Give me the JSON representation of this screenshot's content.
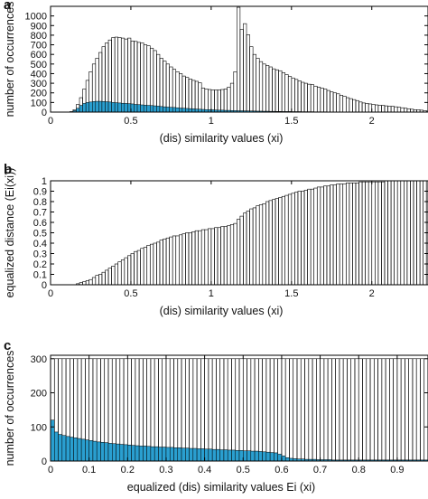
{
  "colors": {
    "fill": "#2a9fd0",
    "stroke": "#000000",
    "background": "#ffffff"
  },
  "chart_data": [
    {
      "panel": "a",
      "type": "bar",
      "xlabel": "(dis) similarity values (xi)",
      "ylabel": "number of occurrences",
      "xlim": [
        0,
        2.35
      ],
      "ylim": [
        0,
        1100
      ],
      "xticks": [
        "0",
        "0.5",
        "1",
        "1.5",
        "2"
      ],
      "yticks": [
        "0",
        "100",
        "200",
        "300",
        "400",
        "500",
        "600",
        "700",
        "800",
        "900",
        "1000"
      ],
      "bin_width": 0.02,
      "series": [
        {
          "role": "outline",
          "values": [
            0,
            0,
            0,
            0,
            0,
            0,
            5,
            25,
            80,
            150,
            240,
            330,
            420,
            500,
            560,
            620,
            680,
            720,
            750,
            775,
            780,
            775,
            770,
            760,
            770,
            740,
            735,
            725,
            720,
            700,
            690,
            665,
            640,
            600,
            560,
            530,
            500,
            470,
            445,
            420,
            400,
            375,
            360,
            345,
            330,
            320,
            305,
            250,
            240,
            235,
            230,
            230,
            230,
            235,
            240,
            260,
            300,
            420,
            1090,
            860,
            920,
            805,
            680,
            600,
            560,
            525,
            500,
            485,
            470,
            450,
            440,
            430,
            410,
            390,
            370,
            355,
            340,
            325,
            310,
            300,
            290,
            285,
            270,
            260,
            250,
            240,
            225,
            210,
            200,
            190,
            175,
            165,
            150,
            140,
            130,
            120,
            105,
            95,
            90,
            85,
            80,
            75,
            70,
            70,
            65,
            60,
            60,
            55,
            50,
            45,
            40,
            35,
            30,
            25,
            25,
            20,
            15,
            10
          ]
        },
        {
          "role": "filled",
          "values": [
            0,
            0,
            0,
            0,
            0,
            0,
            3,
            15,
            40,
            70,
            90,
            100,
            105,
            110,
            112,
            112,
            110,
            108,
            105,
            100,
            98,
            95,
            92,
            90,
            88,
            85,
            80,
            78,
            75,
            72,
            70,
            68,
            65,
            62,
            58,
            55,
            52,
            50,
            48,
            45,
            42,
            40,
            38,
            36,
            34,
            32,
            30,
            28,
            26,
            25,
            24,
            22,
            20,
            20,
            18,
            18,
            16,
            15,
            14,
            14,
            13,
            12,
            12,
            11,
            10,
            10,
            9,
            9,
            8,
            8,
            7,
            7,
            6,
            6,
            6,
            5,
            5,
            5,
            4,
            4,
            4,
            4,
            3,
            3,
            3,
            3,
            2,
            2,
            2,
            2,
            2,
            1,
            1,
            1,
            1,
            1,
            1,
            1,
            1,
            1,
            1,
            1,
            1,
            1,
            0,
            0,
            0,
            0,
            0,
            0,
            0,
            0,
            0,
            0,
            0,
            0,
            0,
            0
          ]
        }
      ]
    },
    {
      "panel": "b",
      "type": "bar",
      "xlabel": "(dis) similarity values (xi)",
      "ylabel": "equalized distance (Ei(xi))",
      "xlim": [
        0,
        2.35
      ],
      "ylim": [
        0,
        1
      ],
      "xticks": [
        "0",
        "0.5",
        "1",
        "1.5",
        "2"
      ],
      "yticks": [
        "0",
        "0.1",
        "0.2",
        "0.3",
        "0.4",
        "0.5",
        "0.6",
        "0.7",
        "0.8",
        "0.9",
        "1"
      ],
      "bin_width": 0.02,
      "series": [
        {
          "role": "outline",
          "values": [
            0,
            0,
            0,
            0,
            0,
            0,
            0,
            0,
            0.01,
            0.02,
            0.03,
            0.04,
            0.05,
            0.07,
            0.09,
            0.1,
            0.12,
            0.14,
            0.16,
            0.18,
            0.2,
            0.22,
            0.24,
            0.26,
            0.28,
            0.3,
            0.32,
            0.33,
            0.35,
            0.36,
            0.38,
            0.39,
            0.4,
            0.41,
            0.43,
            0.44,
            0.45,
            0.46,
            0.47,
            0.47,
            0.48,
            0.49,
            0.5,
            0.5,
            0.51,
            0.52,
            0.52,
            0.53,
            0.53,
            0.54,
            0.54,
            0.55,
            0.55,
            0.56,
            0.56,
            0.57,
            0.58,
            0.59,
            0.63,
            0.66,
            0.69,
            0.71,
            0.73,
            0.74,
            0.76,
            0.77,
            0.78,
            0.8,
            0.81,
            0.82,
            0.83,
            0.84,
            0.85,
            0.86,
            0.87,
            0.88,
            0.89,
            0.9,
            0.9,
            0.91,
            0.92,
            0.92,
            0.93,
            0.94,
            0.94,
            0.95,
            0.95,
            0.96,
            0.96,
            0.97,
            0.97,
            0.97,
            0.98,
            0.98,
            0.98,
            0.98,
            0.99,
            0.99,
            0.99,
            0.99,
            0.99,
            0.99,
            0.99,
            0.99,
            1,
            1,
            1,
            1,
            1,
            1,
            1,
            1,
            1,
            1,
            1,
            1,
            1,
            1
          ]
        }
      ]
    },
    {
      "panel": "c",
      "type": "bar",
      "xlabel": "equalized (dis) similarity values Ei (xi)",
      "ylabel": "number of occurrences",
      "xlim": [
        0,
        0.98
      ],
      "ylim": [
        0,
        310
      ],
      "xticks": [
        "0",
        "0.1",
        "0.2",
        "0.3",
        "0.4",
        "0.5",
        "0.6",
        "0.7",
        "0.8",
        "0.9"
      ],
      "yticks": [
        "0",
        "100",
        "200",
        "300"
      ],
      "bin_width": 0.01,
      "series": [
        {
          "role": "outline",
          "values": [
            300,
            300,
            300,
            300,
            300,
            300,
            300,
            300,
            300,
            300,
            300,
            300,
            300,
            300,
            300,
            300,
            300,
            300,
            300,
            300,
            300,
            300,
            300,
            300,
            300,
            300,
            300,
            300,
            300,
            300,
            300,
            300,
            300,
            300,
            300,
            300,
            300,
            300,
            300,
            300,
            300,
            300,
            300,
            300,
            300,
            300,
            300,
            300,
            300,
            300,
            300,
            300,
            300,
            300,
            300,
            300,
            300,
            300,
            300,
            300,
            300,
            300,
            300,
            300,
            300,
            300,
            300,
            300,
            300,
            300,
            300,
            300,
            300,
            300,
            300,
            300,
            300,
            300,
            300,
            300,
            300,
            300,
            300,
            300,
            300,
            300,
            300,
            300,
            300,
            300,
            300,
            300,
            300,
            300,
            300,
            300,
            300,
            300
          ]
        },
        {
          "role": "filled",
          "values": [
            120,
            85,
            78,
            75,
            72,
            70,
            68,
            66,
            64,
            62,
            60,
            58,
            56,
            55,
            54,
            52,
            51,
            50,
            49,
            48,
            47,
            46,
            45,
            44,
            44,
            43,
            42,
            42,
            41,
            41,
            40,
            40,
            39,
            39,
            38,
            38,
            37,
            37,
            36,
            36,
            35,
            35,
            34,
            34,
            33,
            33,
            32,
            32,
            31,
            31,
            30,
            30,
            29,
            29,
            28,
            27,
            26,
            25,
            24,
            20,
            15,
            10,
            8,
            7,
            6,
            6,
            5,
            5,
            5,
            4,
            4,
            4,
            4,
            3,
            3,
            3,
            3,
            3,
            3,
            3,
            3,
            3,
            3,
            3,
            3,
            3,
            3,
            3,
            3,
            3,
            3,
            3,
            3,
            3,
            3,
            3,
            3,
            3
          ]
        }
      ]
    }
  ]
}
